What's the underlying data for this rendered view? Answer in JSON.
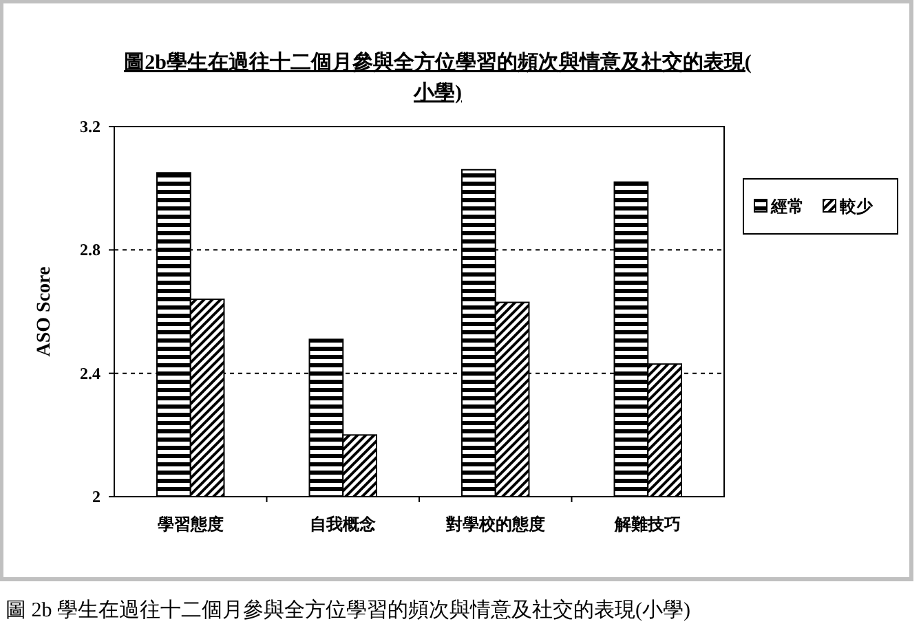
{
  "chart_data": {
    "type": "bar",
    "title": "圖2b學生在過往十二個月參與全方位學習的頻次與情意及社交的表現(小學)",
    "ylabel": "ASO Score",
    "categories": [
      "學習態度",
      "自我概念",
      "對學校的態度",
      "解難技巧"
    ],
    "series": [
      {
        "name": "經常",
        "color": "#000000",
        "values": [
          3.05,
          2.51,
          3.06,
          3.02
        ]
      },
      {
        "name": "較少",
        "color": "#000000",
        "values": [
          2.64,
          2.2,
          2.63,
          2.43
        ]
      }
    ],
    "ylim": [
      2,
      3.2
    ],
    "yticks": [
      2,
      2.4,
      2.8,
      3.2
    ],
    "grid": "y",
    "legend": "right",
    "annotations": [
      "圖 2b 學生在過往十二個月參與全方位學習的頻次與情意及社交的表現(小學)"
    ]
  }
}
